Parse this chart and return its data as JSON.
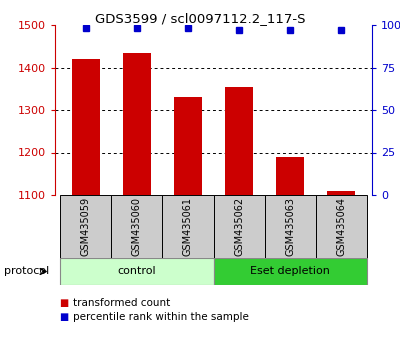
{
  "title": "GDS3599 / scl0097112.2_117-S",
  "samples": [
    "GSM435059",
    "GSM435060",
    "GSM435061",
    "GSM435062",
    "GSM435063",
    "GSM435064"
  ],
  "transformed_counts": [
    1420,
    1435,
    1330,
    1355,
    1190,
    1110
  ],
  "percentile_ranks": [
    98,
    98,
    98,
    97,
    97,
    97
  ],
  "ylim_left": [
    1100,
    1500
  ],
  "ylim_right": [
    0,
    100
  ],
  "yticks_left": [
    1100,
    1200,
    1300,
    1400,
    1500
  ],
  "ytick_labels_right": [
    "0",
    "25",
    "50",
    "75",
    "100%"
  ],
  "bar_color": "#cc0000",
  "dot_color": "#0000cc",
  "control_color_light": "#ccffcc",
  "control_color_dark": "#44cc44",
  "eset_color": "#33cc33",
  "sample_bg_color": "#cccccc",
  "legend_items": [
    {
      "color": "#cc0000",
      "label": "transformed count"
    },
    {
      "color": "#0000cc",
      "label": "percentile rank within the sample"
    }
  ],
  "bg_color": "#ffffff"
}
